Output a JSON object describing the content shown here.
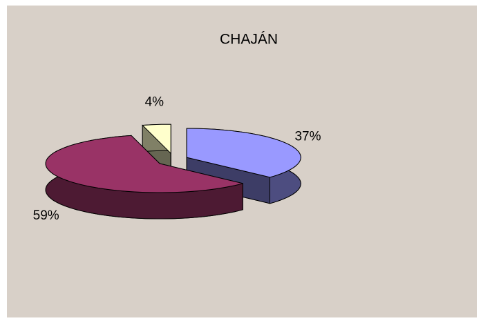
{
  "chart_data": {
    "type": "pie",
    "title": "CHAJÁN",
    "categories": [
      null,
      null,
      null
    ],
    "values": [
      37,
      59,
      4
    ],
    "value_labels": [
      "37%",
      "59%",
      "4%"
    ],
    "colors": [
      "#9999ff",
      "#993366",
      "#ffffcc"
    ]
  }
}
